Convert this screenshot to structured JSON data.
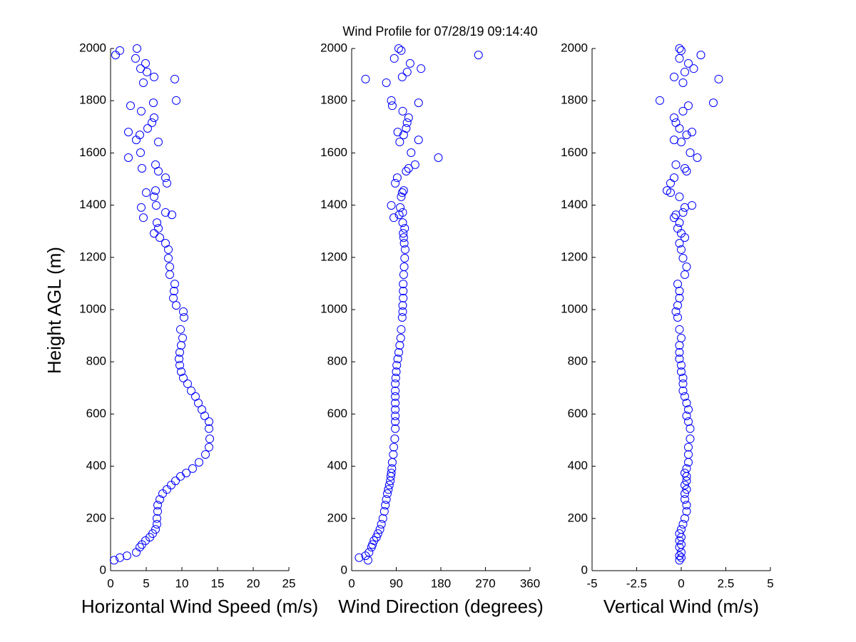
{
  "chart_data": [
    {
      "type": "scatter",
      "title": "Wind Profile for  07/28/19 09:14:40",
      "x_label": "Horizontal Wind Speed (m/s)",
      "y_label": "Height AGL (m)",
      "color": "#0000ff",
      "xlim": [
        0,
        25
      ],
      "xticks": [
        0,
        5,
        10,
        15,
        20,
        25
      ],
      "ylim": [
        0,
        2000
      ],
      "yticks": [
        0,
        200,
        400,
        600,
        800,
        1000,
        1200,
        1400,
        1600,
        1800,
        2000
      ],
      "x": [
        0.5,
        1.3,
        2.3,
        3.6,
        4.1,
        4.4,
        4.9,
        5.5,
        5.9,
        6.3,
        6.5,
        6.5,
        6.6,
        6.6,
        6.9,
        7.3,
        7.9,
        8.5,
        9.1,
        9.8,
        10.6,
        11.5,
        12.4,
        13.3,
        13.8,
        13.9,
        13.8,
        13.8,
        13.2,
        12.8,
        12.3,
        11.9,
        11.3,
        10.8,
        10.2,
        9.9,
        9.7,
        9.6,
        9.7,
        9.9,
        10.1,
        9.8,
        10.3,
        10.2,
        9.2,
        8.8,
        8.9,
        9.0,
        8.3,
        8.3,
        8.1,
        8.1,
        7.7,
        6.9,
        6.1,
        6.7,
        6.5,
        8.6,
        4.6,
        7.7,
        4.3,
        6.4,
        6.1,
        5.0,
        6.3,
        7.9,
        7.7,
        6.7,
        6.3,
        4.4,
        2.5,
        4.2,
        6.7,
        3.6,
        4.1,
        2.5,
        5.2,
        5.8,
        6.1,
        4.3,
        2.8,
        6.0,
        9.2,
        4.6,
        9.0,
        6.1,
        5.1,
        4.2,
        4.9,
        3.5,
        0.7,
        1.3,
        3.7
      ],
      "y": [
        40,
        50,
        57,
        70,
        90,
        100,
        115,
        128,
        142,
        158,
        178,
        200,
        227,
        251,
        273,
        295,
        311,
        328,
        344,
        361,
        374,
        391,
        415,
        445,
        473,
        505,
        544,
        571,
        593,
        617,
        642,
        667,
        689,
        716,
        738,
        762,
        787,
        811,
        836,
        863,
        891,
        924,
        970,
        992,
        1016,
        1044,
        1071,
        1098,
        1134,
        1164,
        1197,
        1230,
        1254,
        1276,
        1292,
        1311,
        1333,
        1363,
        1352,
        1372,
        1391,
        1399,
        1432,
        1448,
        1456,
        1484,
        1505,
        1530,
        1555,
        1541,
        1582,
        1601,
        1642,
        1650,
        1669,
        1680,
        1694,
        1716,
        1735,
        1760,
        1781,
        1792,
        1801,
        1869,
        1883,
        1891,
        1910,
        1923,
        1943,
        1962,
        1975,
        1992,
        2000
      ]
    },
    {
      "type": "scatter",
      "x_label": "Wind Direction (degrees)",
      "color": "#0000ff",
      "xlim": [
        0,
        360
      ],
      "xticks": [
        0,
        90,
        180,
        270,
        360
      ],
      "ylim": [
        0,
        2000
      ],
      "yticks": [
        0,
        200,
        400,
        600,
        800,
        1000,
        1200,
        1400,
        1600,
        1800,
        2000
      ],
      "x": [
        33,
        15,
        28,
        35,
        40,
        42,
        45,
        50,
        53,
        57,
        60,
        63,
        66,
        68,
        70,
        72,
        74,
        76,
        78,
        79,
        80,
        81,
        82,
        84,
        85,
        87,
        88,
        88,
        88,
        88,
        88,
        88,
        88,
        88,
        89,
        90,
        91,
        93,
        95,
        97,
        99,
        100,
        102,
        103,
        103,
        104,
        104,
        104,
        105,
        106,
        107,
        108,
        106,
        105,
        104,
        107,
        103,
        96,
        85,
        103,
        98,
        80,
        100,
        102,
        105,
        88,
        92,
        110,
        128,
        115,
        175,
        120,
        97,
        135,
        105,
        93,
        110,
        112,
        115,
        103,
        82,
        135,
        80,
        70,
        28,
        102,
        112,
        140,
        118,
        86,
        256,
        100,
        95
      ],
      "y": [
        40,
        50,
        57,
        70,
        90,
        100,
        115,
        128,
        142,
        158,
        178,
        200,
        227,
        251,
        273,
        295,
        311,
        328,
        344,
        361,
        374,
        391,
        415,
        445,
        473,
        505,
        544,
        571,
        593,
        617,
        642,
        667,
        689,
        716,
        738,
        762,
        787,
        811,
        836,
        863,
        891,
        924,
        970,
        992,
        1016,
        1044,
        1071,
        1098,
        1134,
        1164,
        1197,
        1230,
        1254,
        1276,
        1292,
        1311,
        1333,
        1363,
        1352,
        1372,
        1391,
        1399,
        1432,
        1448,
        1456,
        1484,
        1505,
        1530,
        1555,
        1541,
        1582,
        1601,
        1642,
        1650,
        1669,
        1680,
        1694,
        1716,
        1735,
        1760,
        1781,
        1792,
        1801,
        1869,
        1883,
        1891,
        1910,
        1923,
        1943,
        1962,
        1975,
        1992,
        2000
      ]
    },
    {
      "type": "scatter",
      "x_label": "Vertical Wind (m/s)",
      "color": "#0000ff",
      "xlim": [
        -5,
        5
      ],
      "xticks": [
        -5,
        -2.5,
        0,
        2.5,
        5
      ],
      "ylim": [
        0,
        2000
      ],
      "yticks": [
        0,
        200,
        400,
        600,
        800,
        1000,
        1200,
        1400,
        1600,
        1800,
        2000
      ],
      "x": [
        -0.1,
        0.0,
        -0.1,
        0.0,
        -0.1,
        0.0,
        -0.1,
        0.0,
        -0.1,
        0.0,
        0.1,
        0.2,
        0.3,
        0.3,
        0.2,
        0.2,
        0.3,
        0.2,
        0.3,
        0.3,
        0.2,
        0.3,
        0.4,
        0.4,
        0.4,
        0.5,
        0.5,
        0.4,
        0.3,
        0.4,
        0.3,
        0.2,
        0.1,
        0.1,
        0.1,
        0.0,
        0.0,
        -0.1,
        -0.1,
        -0.1,
        0.0,
        -0.1,
        -0.2,
        -0.3,
        -0.2,
        -0.1,
        -0.1,
        -0.2,
        0.2,
        0.3,
        0.1,
        0.0,
        -0.1,
        0.2,
        0.0,
        -0.2,
        -0.1,
        -0.3,
        -0.4,
        0.1,
        0.2,
        0.6,
        -0.1,
        -0.6,
        -0.8,
        -0.6,
        -0.4,
        0.3,
        -0.3,
        0.2,
        0.9,
        0.5,
        0.0,
        -0.4,
        0.3,
        0.6,
        -0.1,
        -0.3,
        -0.4,
        0.1,
        0.4,
        1.8,
        -1.2,
        0.1,
        2.1,
        -0.4,
        0.2,
        0.7,
        0.4,
        -0.1,
        1.1,
        0.0,
        -0.1
      ],
      "y": [
        40,
        50,
        57,
        70,
        90,
        100,
        115,
        128,
        142,
        158,
        178,
        200,
        227,
        251,
        273,
        295,
        311,
        328,
        344,
        361,
        374,
        391,
        415,
        445,
        473,
        505,
        544,
        571,
        593,
        617,
        642,
        667,
        689,
        716,
        738,
        762,
        787,
        811,
        836,
        863,
        891,
        924,
        970,
        992,
        1016,
        1044,
        1071,
        1098,
        1134,
        1164,
        1197,
        1230,
        1254,
        1276,
        1292,
        1311,
        1333,
        1363,
        1352,
        1372,
        1391,
        1399,
        1432,
        1448,
        1456,
        1484,
        1505,
        1530,
        1555,
        1541,
        1582,
        1601,
        1642,
        1650,
        1669,
        1680,
        1694,
        1716,
        1735,
        1760,
        1781,
        1792,
        1801,
        1869,
        1883,
        1891,
        1910,
        1923,
        1943,
        1962,
        1975,
        1992,
        2000
      ]
    }
  ]
}
